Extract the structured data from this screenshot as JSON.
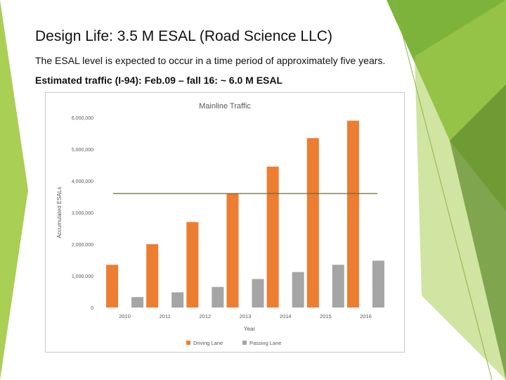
{
  "slide": {
    "title": "Design Life: 3.5 M ESAL (Road Science LLC)",
    "line1": "The ESAL level is expected to occur in a time period of approximately five years.",
    "line2": "Estimated traffic (I-94): Feb.09 – fall 16: ~ 6.0 M ESAL"
  },
  "theme": {
    "green_light": "#a9cf54",
    "green_mid": "#7db33a",
    "green_dark": "#5e8a2c",
    "driving_color": "#ed7d31",
    "passing_color": "#a5a5a5"
  },
  "chart_data": {
    "type": "bar",
    "title": "Mainline Traffic",
    "xlabel": "Year",
    "ylabel": "Accumulated ESALs",
    "categories": [
      "2010",
      "2011",
      "2012",
      "2013",
      "2014",
      "2015",
      "2016"
    ],
    "series": [
      {
        "name": "Driving Lane",
        "color": "#ed7d31",
        "values": [
          1350000,
          2000000,
          2700000,
          3600000,
          4450000,
          5350000,
          5900000
        ]
      },
      {
        "name": "Passing Lane",
        "color": "#a5a5a5",
        "values": [
          330000,
          480000,
          650000,
          900000,
          1120000,
          1350000,
          1480000
        ]
      }
    ],
    "ylim": [
      0,
      6000000
    ],
    "yticks": [
      0,
      1000000,
      2000000,
      3000000,
      4000000,
      5000000,
      6000000
    ],
    "ytick_labels": [
      "0",
      "1,000,000",
      "2,000,000",
      "3,000,000",
      "4,000,000",
      "5,000,000",
      "6,000,000"
    ],
    "reference_line": 3600000,
    "reference_color": "#6b6b3a",
    "grid": false,
    "legend": "bottom"
  }
}
